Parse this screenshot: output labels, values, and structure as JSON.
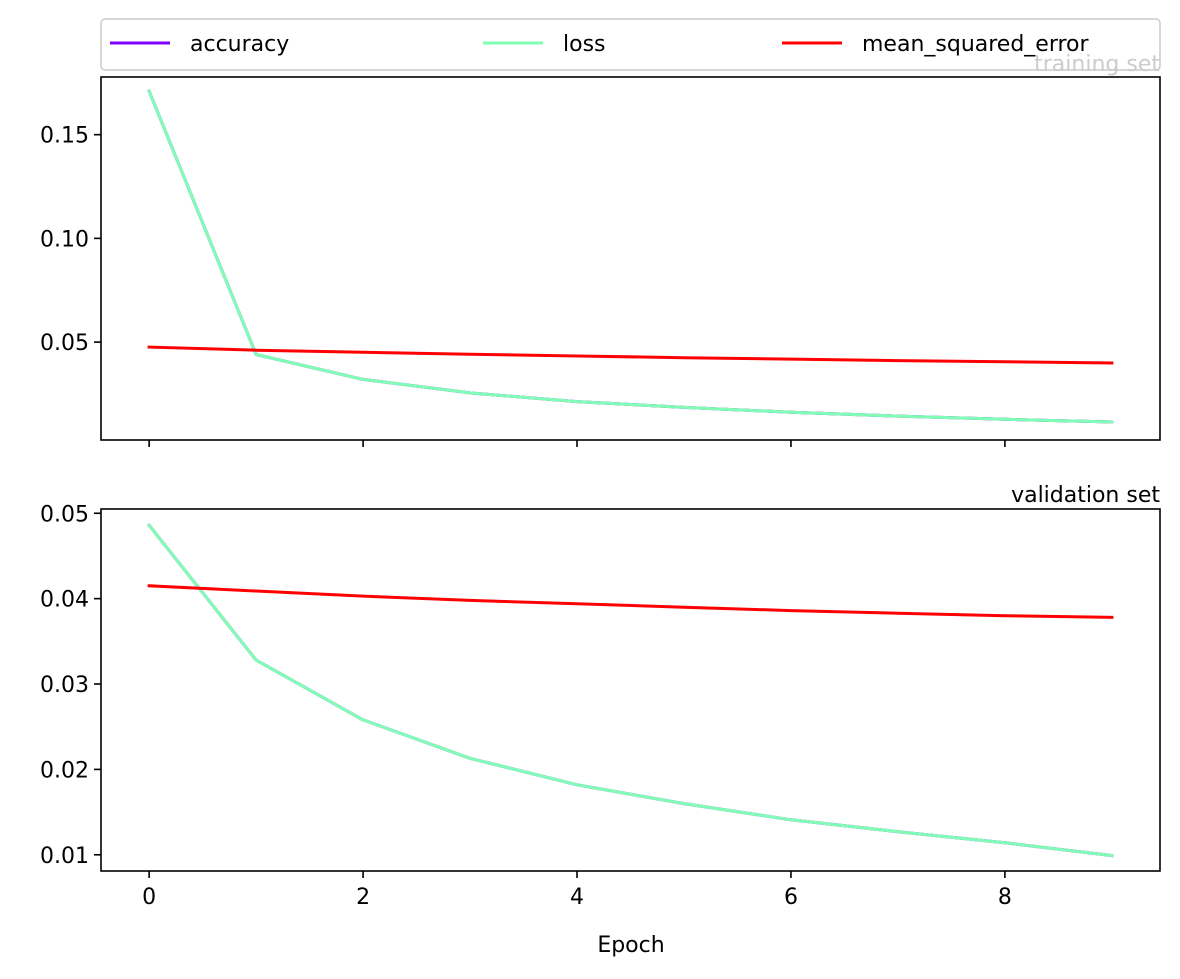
{
  "chart_data": {
    "type": "line",
    "xlabel": "Epoch",
    "legend": {
      "placement": "top",
      "entries": [
        {
          "label": "accuracy",
          "color": "#8000ff"
        },
        {
          "label": "loss",
          "color": "#80ffb4"
        },
        {
          "label": "mean_squared_error",
          "color": "#ff0000"
        }
      ]
    },
    "panels": [
      {
        "title": "training set",
        "title_color": "#cccccc",
        "ylim": [
          0.0028,
          0.1778
        ],
        "xlim": [
          -0.45,
          9.45
        ],
        "yticks": [
          0.05,
          0.1,
          0.15
        ],
        "ytick_labels": [
          "0.05",
          "0.10",
          "0.15"
        ],
        "xticks": [
          0,
          2,
          4,
          6,
          8
        ],
        "show_xtick_labels": false,
        "series": [
          {
            "name": "accuracy",
            "color": "#8000ff",
            "x": [
              0,
              1,
              2,
              3,
              4,
              5,
              6,
              7,
              8,
              9
            ],
            "y": [
              0.171,
              0.044,
              0.032,
              0.0255,
              0.0213,
              0.0185,
              0.0162,
              0.0143,
              0.0128,
              0.0115
            ]
          },
          {
            "name": "loss",
            "color": "#80ffb4",
            "x": [
              0,
              1,
              2,
              3,
              4,
              5,
              6,
              7,
              8,
              9
            ],
            "y": [
              0.171,
              0.044,
              0.032,
              0.0255,
              0.0213,
              0.0185,
              0.0162,
              0.0143,
              0.0128,
              0.0115
            ]
          },
          {
            "name": "mean_squared_error",
            "color": "#ff0000",
            "x": [
              0,
              1,
              2,
              3,
              4,
              5,
              6,
              7,
              8,
              9
            ],
            "y": [
              0.0476,
              0.0461,
              0.0451,
              0.0441,
              0.0433,
              0.0425,
              0.0418,
              0.0411,
              0.0405,
              0.0399
            ]
          }
        ]
      },
      {
        "title": "validation set",
        "title_color": "#000000",
        "ylim": [
          0.0081,
          0.0505
        ],
        "xlim": [
          -0.45,
          9.45
        ],
        "yticks": [
          0.01,
          0.02,
          0.03,
          0.04,
          0.05
        ],
        "ytick_labels": [
          "0.01",
          "0.02",
          "0.03",
          "0.04",
          "0.05"
        ],
        "xticks": [
          0,
          2,
          4,
          6,
          8
        ],
        "xtick_labels": [
          "0",
          "2",
          "4",
          "6",
          "8"
        ],
        "show_xtick_labels": true,
        "series": [
          {
            "name": "accuracy",
            "color": "#8000ff",
            "x": [
              0,
              1,
              2,
              3,
              4,
              5,
              6,
              7,
              8,
              9
            ],
            "y": [
              0.0486,
              0.0328,
              0.0258,
              0.0213,
              0.0182,
              0.016,
              0.0141,
              0.0127,
              0.0114,
              0.0099
            ]
          },
          {
            "name": "loss",
            "color": "#80ffb4",
            "x": [
              0,
              1,
              2,
              3,
              4,
              5,
              6,
              7,
              8,
              9
            ],
            "y": [
              0.0486,
              0.0328,
              0.0258,
              0.0213,
              0.0182,
              0.016,
              0.0141,
              0.0127,
              0.0114,
              0.0099
            ]
          },
          {
            "name": "mean_squared_error",
            "color": "#ff0000",
            "x": [
              0,
              1,
              2,
              3,
              4,
              5,
              6,
              7,
              8,
              9
            ],
            "y": [
              0.0415,
              0.0409,
              0.0403,
              0.0398,
              0.0394,
              0.039,
              0.0386,
              0.0383,
              0.038,
              0.0378
            ]
          }
        ]
      }
    ]
  }
}
